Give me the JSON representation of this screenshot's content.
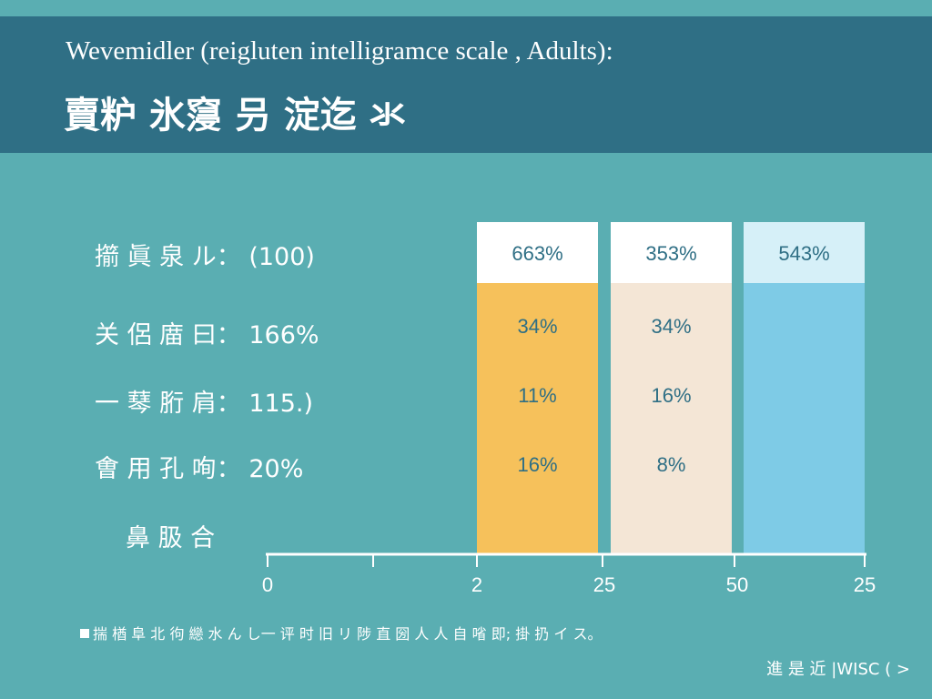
{
  "header": {
    "title_en": "Wevemidler (reigluten intelligramce scale , Adults):",
    "title_jp": "賣粐 氷䆮 叧 淀迄 氺"
  },
  "stats": [
    {
      "label": "擶 眞 泉 ル：",
      "value": "(100)"
    },
    {
      "label": "关 侶 庿 曰：",
      "value": "166%"
    },
    {
      "label": "一 䔷 胻 肩：",
      "value": "115.)"
    },
    {
      "label": "㑹 用 孔 咰：",
      "value": "20%"
    }
  ],
  "legend_label": "鼻 䏜 合",
  "footnote": "揣 楢 阜 北 㣘 纞 水 ん し一 评 时 旧 リ 陟 直 圀 人 人 自 㗂 即; 掛 扔 イ ス。",
  "source": "進 是 近 |WISC ( >",
  "colors": {
    "background": "#5aaeb2",
    "header": "#2f6f85",
    "bar_orange": "#f6c15b",
    "bar_cream": "#f4e6d6",
    "bar_blue": "#7ecbe6",
    "top_white": "#ffffff",
    "top_light_blue": "#d6f0f8",
    "value_text": "#2f6f85"
  },
  "chart_data": {
    "type": "table",
    "columns": [
      {
        "top_label": "663%",
        "values": [
          "34%",
          "11%",
          "16%"
        ]
      },
      {
        "top_label": "353%",
        "values": [
          "34%",
          "16%",
          "8%"
        ]
      },
      {
        "top_label": "543%",
        "values": []
      }
    ],
    "x_ticks": [
      "0",
      "2",
      "25",
      "50",
      "25"
    ]
  }
}
